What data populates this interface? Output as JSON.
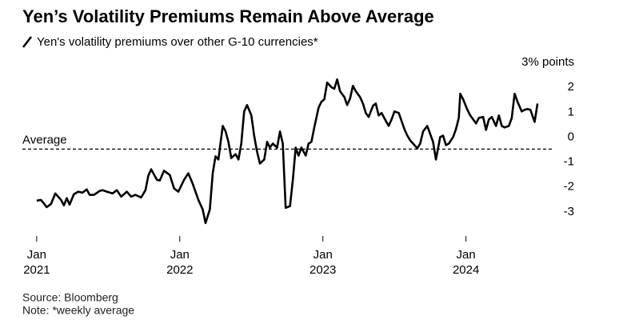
{
  "chart_data": {
    "type": "line",
    "title": "Yen’s Volatility Premiums Remain Above Average",
    "source": "Source: Bloomberg",
    "note": "Note: *weekly average",
    "average_label": "Average",
    "average": -0.48,
    "xlim": [
      2020.9,
      2024.6
    ],
    "xticks": [
      {
        "value": 2021,
        "label": "Jan 2021"
      },
      {
        "value": 2022,
        "label": "Jan 2022"
      },
      {
        "value": 2023,
        "label": "Jan 2023"
      },
      {
        "value": 2024,
        "label": "Jan 2024"
      }
    ],
    "ylim": [
      -3.6,
      3.1
    ],
    "yticks": [
      {
        "value": 3,
        "label": "3% points"
      },
      2,
      1,
      0,
      -1,
      -2,
      -3
    ],
    "series": [
      {
        "name": "Yen's volatility premiums over other G-10 currencies*",
        "color": "#000000",
        "x": [
          2021.0,
          2021.03,
          2021.07,
          2021.1,
          2021.13,
          2021.17,
          2021.19,
          2021.21,
          2021.23,
          2021.26,
          2021.29,
          2021.32,
          2021.35,
          2021.37,
          2021.4,
          2021.44,
          2021.46,
          2021.49,
          2021.53,
          2021.56,
          2021.59,
          2021.63,
          2021.66,
          2021.69,
          2021.73,
          2021.76,
          2021.78,
          2021.8,
          2021.84,
          2021.86,
          2021.89,
          2021.93,
          2021.96,
          2021.99,
          2022.03,
          2022.06,
          2022.09,
          2022.13,
          2022.16,
          2022.18,
          2022.21,
          2022.23,
          2022.25,
          2022.27,
          2022.3,
          2022.32,
          2022.34,
          2022.36,
          2022.39,
          2022.41,
          2022.43,
          2022.45,
          2022.47,
          2022.5,
          2022.52,
          2022.54,
          2022.56,
          2022.59,
          2022.61,
          2022.63,
          2022.65,
          2022.68,
          2022.7,
          2022.72,
          2022.74,
          2022.77,
          2022.79,
          2022.81,
          2022.83,
          2022.85,
          2022.88,
          2022.9,
          2022.92,
          2022.94,
          2022.97,
          2022.99,
          2023.01,
          2023.03,
          2023.06,
          2023.08,
          2023.1,
          2023.12,
          2023.15,
          2023.17,
          2023.19,
          2023.21,
          2023.23,
          2023.26,
          2023.28,
          2023.3,
          2023.32,
          2023.35,
          2023.37,
          2023.39,
          2023.41,
          2023.44,
          2023.46,
          2023.48,
          2023.5,
          2023.53,
          2023.55,
          2023.57,
          2023.59,
          2023.61,
          2023.64,
          2023.66,
          2023.68,
          2023.7,
          2023.73,
          2023.75,
          2023.77,
          2023.79,
          2023.82,
          2023.84,
          2023.86,
          2023.88,
          2023.91,
          2023.93,
          2023.95,
          2023.96,
          2023.98,
          2024.01,
          2024.03,
          2024.05,
          2024.07,
          2024.09,
          2024.12,
          2024.14,
          2024.16,
          2024.18,
          2024.21,
          2024.23,
          2024.25,
          2024.27,
          2024.3,
          2024.32,
          2024.34,
          2024.36,
          2024.39,
          2024.41,
          2024.43,
          2024.45,
          2024.48,
          2024.5
        ],
        "values": [
          -2.55,
          -2.52,
          -2.81,
          -2.68,
          -2.26,
          -2.52,
          -2.74,
          -2.45,
          -2.71,
          -2.29,
          -2.19,
          -2.23,
          -2.1,
          -2.32,
          -2.32,
          -2.16,
          -2.13,
          -2.19,
          -2.26,
          -2.13,
          -2.39,
          -2.19,
          -2.39,
          -2.32,
          -2.42,
          -2.13,
          -1.55,
          -1.29,
          -1.71,
          -1.74,
          -1.35,
          -1.52,
          -2.06,
          -2.19,
          -1.71,
          -1.45,
          -1.87,
          -2.52,
          -2.9,
          -3.45,
          -2.9,
          -1.45,
          -0.77,
          -0.9,
          0.45,
          0.23,
          -0.19,
          -0.84,
          -0.68,
          -0.9,
          -0.26,
          1.03,
          1.29,
          0.87,
          0.06,
          -0.58,
          -1.06,
          -0.9,
          -0.19,
          -0.42,
          -0.26,
          -0.42,
          0.23,
          -0.26,
          -2.84,
          -2.77,
          -1.71,
          -0.42,
          -0.74,
          -0.42,
          -0.74,
          -0.26,
          -0.19,
          0.39,
          1.19,
          1.42,
          1.52,
          2.19,
          2.0,
          1.94,
          2.32,
          1.84,
          1.61,
          1.29,
          1.55,
          2.06,
          1.84,
          1.61,
          1.35,
          0.97,
          0.81,
          1.26,
          1.35,
          0.87,
          0.97,
          0.65,
          0.45,
          0.71,
          1.03,
          0.97,
          0.65,
          0.32,
          0.06,
          -0.13,
          -0.32,
          -0.45,
          -0.26,
          0.23,
          0.45,
          0.13,
          -0.19,
          -0.9,
          0.0,
          0.06,
          -0.32,
          -0.26,
          0.0,
          0.32,
          0.77,
          1.74,
          1.52,
          1.1,
          0.87,
          0.71,
          0.55,
          0.77,
          0.81,
          0.29,
          0.71,
          0.81,
          0.45,
          0.87,
          0.45,
          0.39,
          0.45,
          0.77,
          1.74,
          1.42,
          1.03,
          1.1,
          1.13,
          1.1,
          0.61,
          1.35
        ]
      }
    ]
  }
}
